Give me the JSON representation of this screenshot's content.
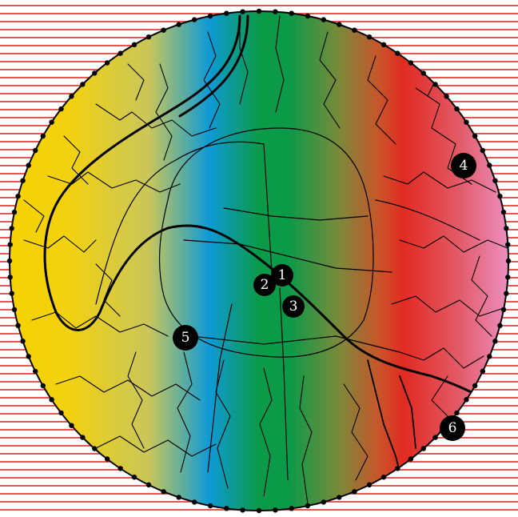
{
  "map": {
    "style": {
      "stripe_color": "#e0201a",
      "boundary_color": "#000000",
      "gradient": [
        "#f6d200",
        "#f2d110",
        "#c9c65a",
        "#0e9ad6",
        "#0a9a48",
        "#0a9a48",
        "#7a8a3a",
        "#c8552a",
        "#e22a22",
        "#e25a66",
        "#ec8fc0"
      ]
    },
    "markers": [
      {
        "id": "1",
        "label": "1"
      },
      {
        "id": "2",
        "label": "2"
      },
      {
        "id": "3",
        "label": "3"
      },
      {
        "id": "4",
        "label": "4"
      },
      {
        "id": "5",
        "label": "5"
      },
      {
        "id": "6",
        "label": "6"
      }
    ]
  }
}
